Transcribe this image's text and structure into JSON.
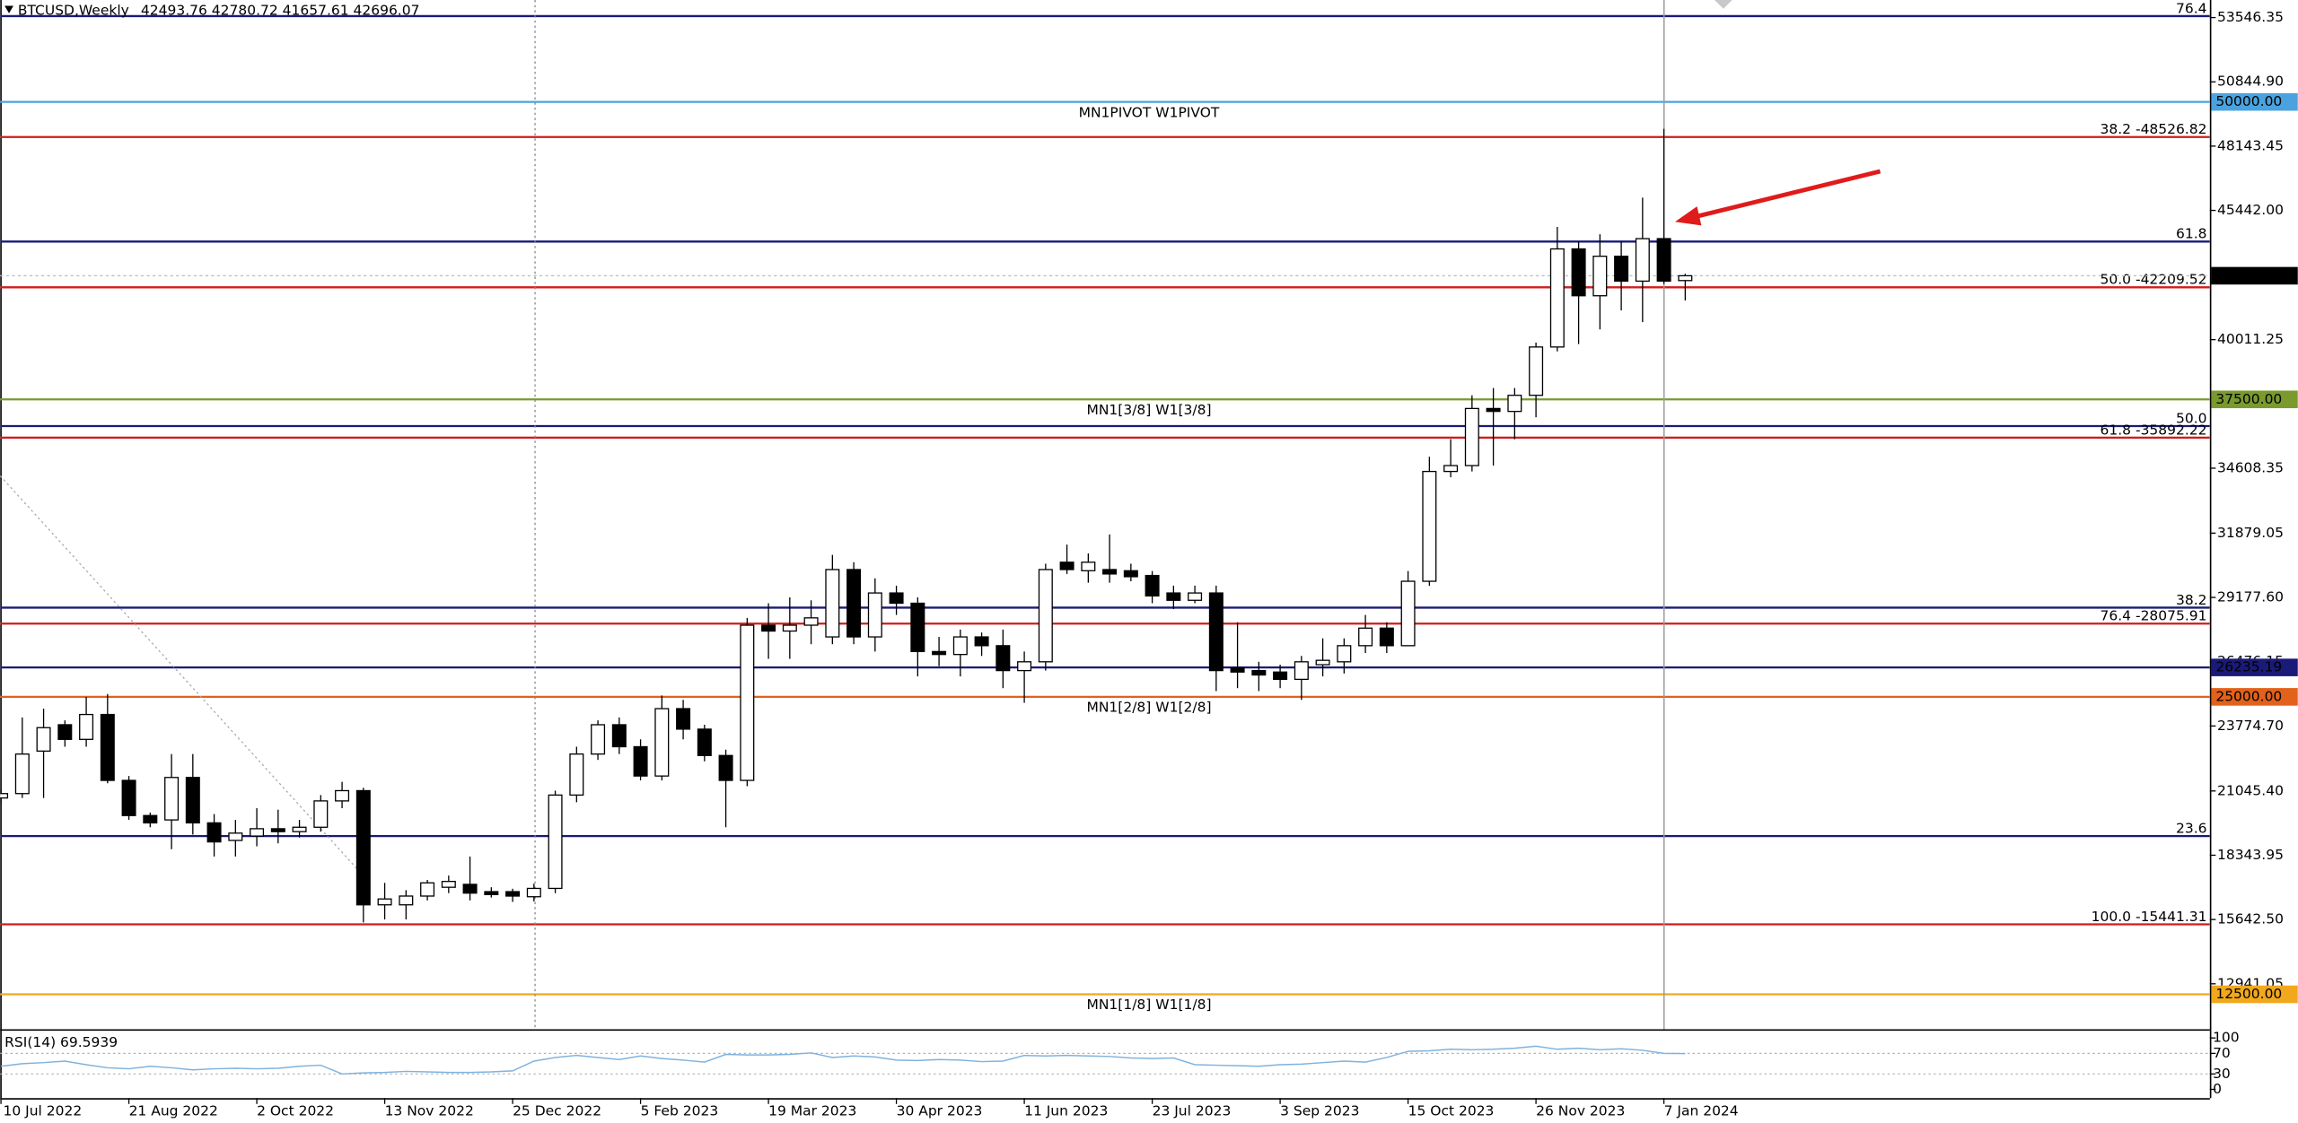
{
  "chart_data": {
    "type": "candlestick",
    "title": "BTCUSD,Weekly",
    "categories": [
      "10 Jul 2022",
      null,
      null,
      null,
      null,
      null,
      "21 Aug 2022",
      null,
      null,
      null,
      null,
      null,
      "2 Oct 2022",
      null,
      null,
      null,
      null,
      null,
      "13 Nov 2022",
      null,
      null,
      null,
      null,
      null,
      "25 Dec 2022",
      null,
      null,
      null,
      null,
      null,
      "5 Feb 2023",
      null,
      null,
      null,
      null,
      null,
      "19 Mar 2023",
      null,
      null,
      null,
      null,
      null,
      "30 Apr 2023",
      null,
      null,
      null,
      null,
      null,
      "11 Jun 2023",
      null,
      null,
      null,
      null,
      null,
      "23 Jul 2023",
      null,
      null,
      null,
      null,
      null,
      "3 Sep 2023",
      null,
      null,
      null,
      null,
      null,
      "15 Oct 2023",
      null,
      null,
      null,
      null,
      null,
      "26 Nov 2023",
      null,
      null,
      null,
      null,
      null,
      "7 Jan 2024",
      null
    ],
    "open": [
      20750,
      20935,
      22720,
      23828,
      23213,
      24258,
      21489,
      20012,
      19828,
      21612,
      19704,
      18966,
      19150,
      19458,
      19335,
      19520,
      20627,
      21058,
      16260,
      16260,
      16628,
      16998,
      17120,
      16813,
      16813,
      16600,
      16950,
      20873,
      22596,
      23828,
      22904,
      21673,
      24504,
      23643,
      22535,
      21489,
      28011,
      27765,
      28011,
      27519,
      30349,
      27519,
      29365,
      28934,
      26904,
      26780,
      27519,
      27150,
      26104,
      26473,
      30657,
      30300,
      30349,
      30300,
      30100,
      29365,
      29057,
      29365,
      26227,
      26104,
      26042,
      25735,
      26350,
      26473,
      27150,
      27888,
      27150,
      29857,
      34472,
      34718,
      37118,
      36995,
      37672,
      39702,
      43824,
      41855,
      43516,
      42470,
      44255,
      42493.76
    ],
    "high": [
      21100,
      24135,
      24504,
      24012,
      24996,
      25120,
      21673,
      20135,
      22596,
      22596,
      20074,
      19828,
      20320,
      20258,
      19828,
      20873,
      21427,
      21181,
      17183,
      16875,
      17306,
      17489,
      18290,
      16998,
      16936,
      17150,
      21058,
      22904,
      24012,
      24135,
      23213,
      25058,
      24873,
      23828,
      22781,
      28319,
      28934,
      29180,
      29057,
      30964,
      30657,
      29980,
      29672,
      29180,
      27519,
      27827,
      27704,
      27827,
      26904,
      30595,
      31396,
      31027,
      31826,
      30595,
      30287,
      29672,
      29672,
      29672,
      28135,
      26473,
      26350,
      26719,
      27458,
      27458,
      28442,
      28135,
      30287,
      35087,
      35825,
      37672,
      37980,
      37980,
      39887,
      44747,
      44132,
      44439,
      44132,
      45978,
      48870,
      42780.72
    ],
    "low": [
      20500,
      20750,
      20750,
      22904,
      22904,
      21366,
      19828,
      19520,
      18597,
      19212,
      18290,
      18290,
      18720,
      18843,
      19089,
      19335,
      20320,
      15522,
      15645,
      15645,
      16444,
      16752,
      16444,
      16567,
      16383,
      16400,
      16750,
      20570,
      22350,
      22596,
      21489,
      21489,
      23213,
      22289,
      19520,
      21243,
      26596,
      26596,
      27212,
      27212,
      27212,
      26904,
      28442,
      25858,
      26288,
      25858,
      26719,
      25365,
      24750,
      26104,
      30164,
      29796,
      29796,
      29857,
      28934,
      28688,
      28934,
      25242,
      25365,
      25242,
      25365,
      24873,
      25858,
      25981,
      26842,
      26842,
      27150,
      29672,
      34226,
      34472,
      34718,
      35825,
      36749,
      39518,
      39825,
      40440,
      41240,
      40748,
      42350,
      41657.61
    ],
    "close": [
      20935,
      22596,
      23705,
      23213,
      24258,
      21489,
      20012,
      19704,
      21612,
      19704,
      18904,
      19273,
      19458,
      19335,
      19520,
      20627,
      21058,
      16260,
      16506,
      16628,
      17183,
      17243,
      16752,
      16690,
      16628,
      16950,
      20873,
      22596,
      23828,
      22904,
      21673,
      24504,
      23643,
      22535,
      21489,
      28011,
      27765,
      28011,
      28319,
      30349,
      27519,
      29365,
      28934,
      26904,
      26780,
      27519,
      27150,
      26104,
      26473,
      30349,
      30349,
      30657,
      30164,
      30049,
      29242,
      29057,
      29365,
      26104,
      26042,
      25919,
      25735,
      26473,
      26535,
      27150,
      27888,
      27150,
      29857,
      34472,
      34718,
      37118,
      36995,
      37672,
      39702,
      43824,
      41855,
      43516,
      42470,
      44255,
      42470,
      42696.07
    ],
    "up_color": "#ffffff",
    "down_color": "#000000",
    "last_price_tag": true,
    "ylim": [
      11029,
      54284
    ],
    "yticks": [
      53546.35,
      {
        "value": 50844.9,
        "label": "50844.90"
      },
      48143.45,
      {
        "value": 45442,
        "label": "45442.00"
      },
      40011.25,
      34608.35,
      31879.05,
      {
        "value": 29177.6,
        "label": "29177.60"
      },
      26476.15,
      {
        "value": 23774.7,
        "label": "23774.70"
      },
      {
        "value": 21045.4,
        "label": "21045.40"
      },
      18343.95,
      {
        "value": 15642.5,
        "label": "15642.50"
      },
      12941.05
    ],
    "levels": [
      {
        "value": 53608,
        "color": "#1a1a7a",
        "label": "76.4",
        "label_align": "right"
      },
      {
        "value": 50000,
        "color": "#4aa3df",
        "label": "MN1PIVOT W1PIVOT",
        "label_align": "center",
        "tag": "50000.00"
      },
      {
        "value": 48526.82,
        "color": "#d01c1c",
        "label": "38.2 -48526.82",
        "label_align": "right"
      },
      {
        "value": 44132,
        "color": "#1a1a7a",
        "label": "61.8",
        "label_align": "right"
      },
      {
        "value": 42209.52,
        "color": "#d01c1c",
        "label": "50.0 -42209.52",
        "label_align": "right"
      },
      {
        "value": 37500,
        "color": "#7a9a2e",
        "label": "MN1[3/8] W1[3/8]",
        "label_align": "center",
        "tag": "37500.00"
      },
      {
        "value": 36379,
        "color": "#1a1a7a",
        "label": "50.0",
        "label_align": "right"
      },
      {
        "value": 35892.22,
        "color": "#d01c1c",
        "label": "61.8 -35892.22",
        "label_align": "right"
      },
      {
        "value": 28749,
        "color": "#1a1a7a",
        "label": "38.2",
        "label_align": "right"
      },
      {
        "value": 28075.91,
        "color": "#d01c1c",
        "label": "76.4 -28075.91",
        "label_align": "right"
      },
      {
        "value": 26235.19,
        "color": "#1a1a7a",
        "tag": true
      },
      {
        "value": 25000,
        "color": "#e2611b",
        "label": "MN1[2/8] W1[2/8]",
        "label_align": "center",
        "tag": "25000.00"
      },
      {
        "value": 19150,
        "color": "#1a1a7a",
        "label": "23.6",
        "label_align": "right"
      },
      {
        "value": 15441.31,
        "color": "#d01c1c",
        "label": "100.0 -15441.31",
        "label_align": "right"
      },
      {
        "value": 12500,
        "color": "#f2a81d",
        "label": "MN1[1/8] W1[1/8]",
        "label_align": "center",
        "tag": "12500.00"
      }
    ],
    "indicator": {
      "type": "line",
      "name": "RSI(14)",
      "color": "#7fb2de",
      "values": [
        45,
        50,
        52,
        55,
        48,
        42,
        40,
        45,
        42,
        38,
        40,
        41,
        40,
        41,
        45,
        47,
        30,
        32,
        33,
        35,
        34,
        33,
        33,
        34,
        36,
        55,
        62,
        66,
        62,
        58,
        65,
        60,
        57,
        53,
        68,
        67,
        67,
        68,
        71,
        62,
        65,
        63,
        57,
        56,
        58,
        57,
        54,
        55,
        66,
        65,
        66,
        65,
        64,
        61,
        60,
        61,
        48,
        47,
        46,
        45,
        48,
        49,
        52,
        55,
        53,
        62,
        74,
        75,
        78,
        77,
        78,
        80,
        84,
        78,
        80,
        77,
        79,
        76,
        70,
        69.5939
      ],
      "ylim": [
        -17,
        114
      ],
      "yticks": [
        100,
        70,
        30,
        0
      ],
      "levels": [
        70,
        30
      ]
    }
  }
}
